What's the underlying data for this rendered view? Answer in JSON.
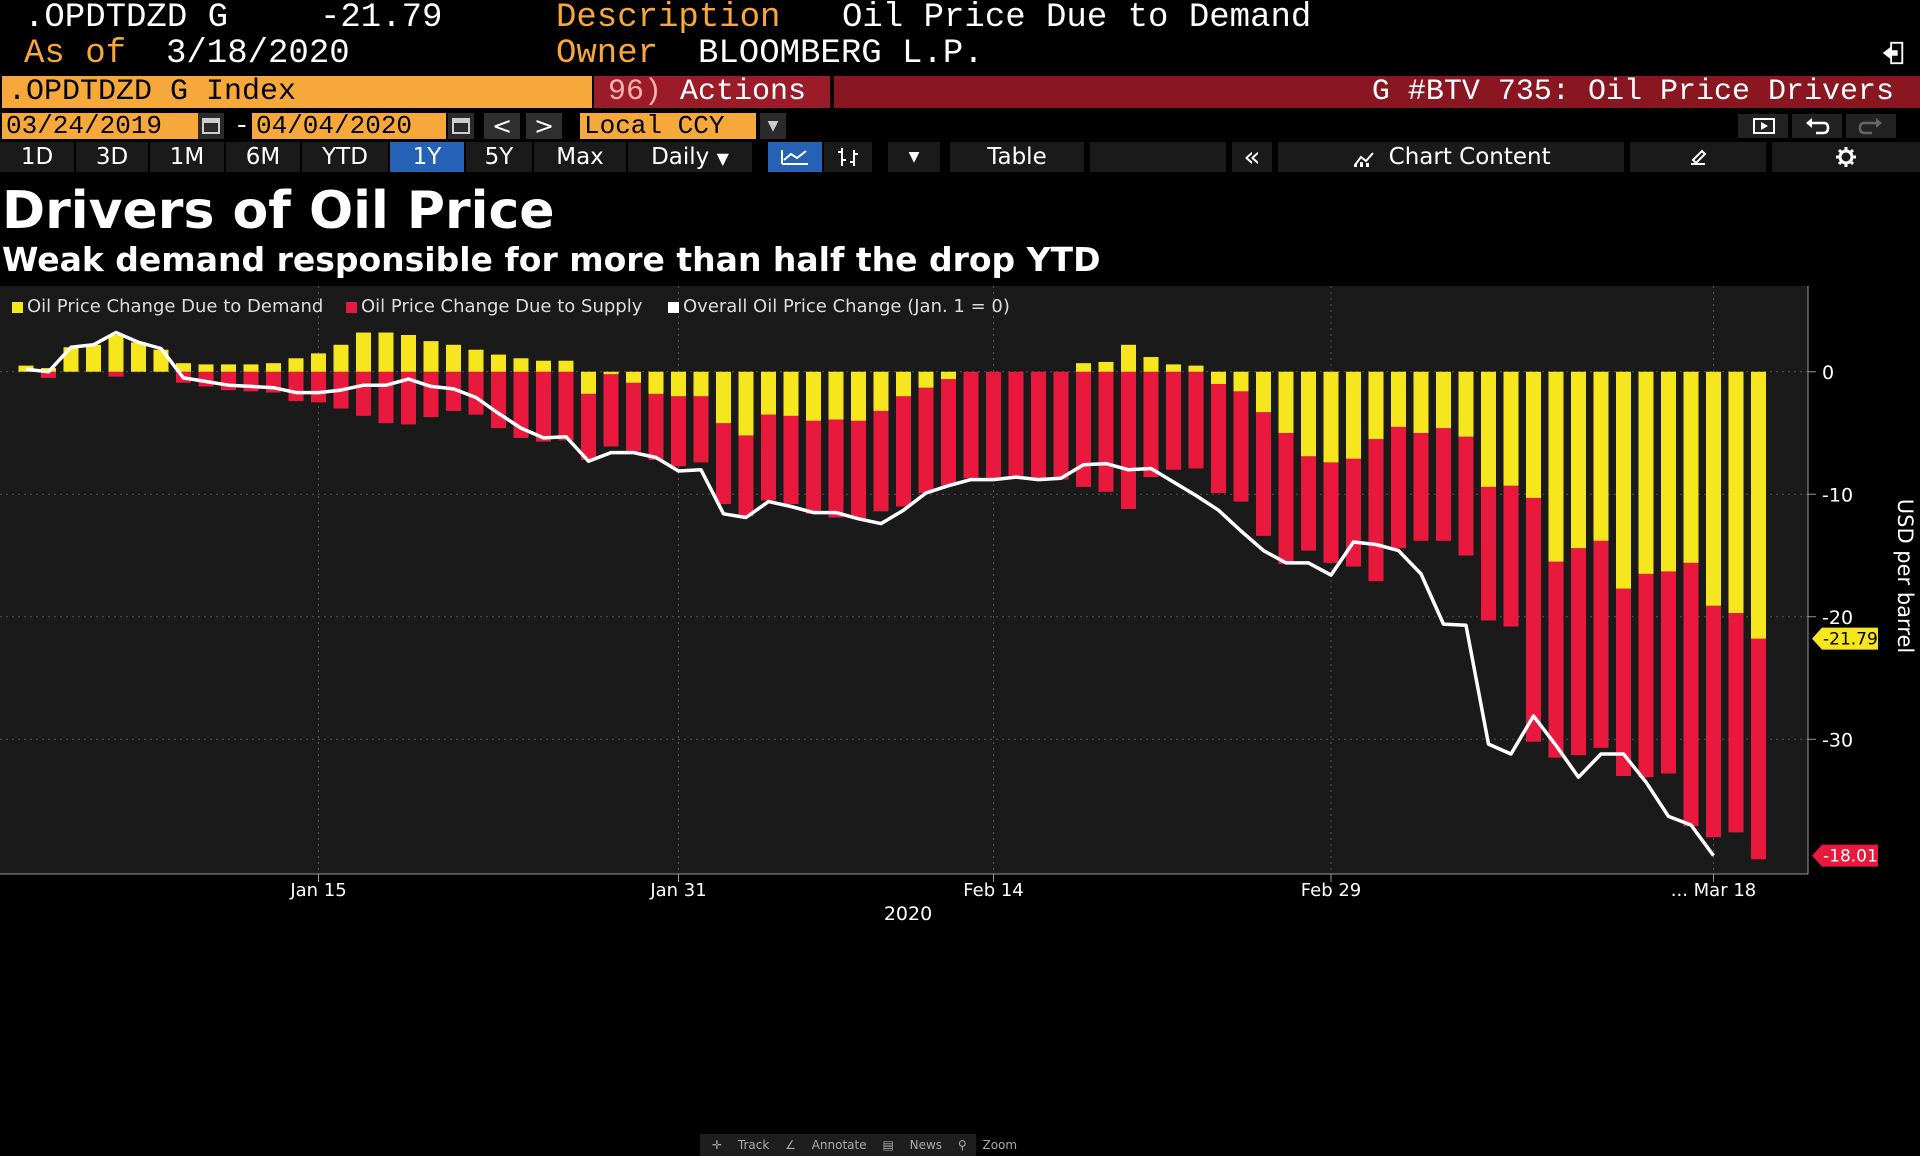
{
  "header": {
    "ticker": ".OPDTDZD G",
    "last_value": "-21.79",
    "as_of_label": "As of",
    "as_of_date": "3/18/2020",
    "description_label": "Description",
    "description": "Oil Price Due to Demand",
    "owner_label": "Owner",
    "owner": "BLOOMBERG L.P."
  },
  "security_bar": {
    "security": ".OPDTDZD G Index",
    "actions_num": "96)",
    "actions_label": "Actions",
    "chart_name": "G #BTV 735: Oil Price Drivers"
  },
  "date_row": {
    "start_date": "03/24/2019",
    "separator": "-",
    "end_date": "04/04/2020",
    "prev": "<",
    "next": ">",
    "currency": "Local CCY"
  },
  "period_row": {
    "periods": [
      "1D",
      "3D",
      "1M",
      "6M",
      "YTD",
      "1Y",
      "5Y",
      "Max"
    ],
    "active_period": "1Y",
    "frequency": "Daily",
    "table_label": "Table",
    "collapse_label": "«",
    "chart_content_label": "Chart Content"
  },
  "icons": {
    "exit": "exit-icon",
    "calendar": "calendar-icon",
    "dropdown": "chevron-down-icon",
    "line_chart": "line-chart-icon",
    "bar_chart": "ohlc-icon",
    "presentation": "presentation-icon",
    "undo": "undo-icon",
    "redo": "redo-icon",
    "edit": "edit-icon",
    "settings": "gear-icon"
  },
  "colors": {
    "demand": "#f5e61d",
    "supply": "#e8193c",
    "overall": "#ffffff",
    "orange": "#f7a83b",
    "background": "#1a1a1a"
  },
  "toolstrip": {
    "track": "Track",
    "annotate": "Annotate",
    "news": "News",
    "zoom": "Zoom"
  },
  "chart_data": {
    "type": "bar",
    "title": "Drivers of Oil Price",
    "subtitle": "Weak demand responsible for more than half the drop YTD",
    "ylabel": "USD per barrel",
    "xlabel": "2020",
    "ylim": [
      -41,
      7
    ],
    "yticks": [
      0,
      -10,
      -20,
      -30
    ],
    "xticks": [
      {
        "index": 13,
        "label": "Jan 15"
      },
      {
        "index": 29,
        "label": "Jan 31"
      },
      {
        "index": 43,
        "label": "Feb 14"
      },
      {
        "index": 58,
        "label": "Feb 29"
      },
      {
        "index": 75,
        "label": "...   Mar 18"
      }
    ],
    "legend": [
      "Oil Price Change Due to Demand",
      "Oil Price Change Due to Supply",
      "Overall Oil Price Change (Jan. 1 = 0)"
    ],
    "last_labels": {
      "demand": "-21.79",
      "supply": "-18.01"
    },
    "series": [
      {
        "name": "Oil Price Change Due to Demand",
        "values": [
          0.5,
          0.3,
          2.0,
          2.2,
          3.0,
          2.4,
          1.8,
          0.7,
          0.6,
          0.6,
          0.6,
          0.7,
          1.1,
          1.5,
          2.2,
          3.2,
          3.2,
          3.0,
          2.5,
          2.2,
          1.8,
          1.4,
          1.1,
          0.9,
          0.9,
          -1.8,
          -0.2,
          -0.9,
          -1.8,
          -2.0,
          -2.0,
          -4.2,
          -5.2,
          -3.5,
          -3.6,
          -4.0,
          -3.9,
          -4.0,
          -3.2,
          -2.0,
          -1.3,
          -0.6,
          0.0,
          0.0,
          0.0,
          0.0,
          0.0,
          0.7,
          0.8,
          2.2,
          1.2,
          0.6,
          0.5,
          -1.0,
          -1.6,
          -3.3,
          -5.0,
          -6.9,
          -7.4,
          -7.1,
          -5.5,
          -4.5,
          -5.0,
          -4.6,
          -5.3,
          -9.4,
          -9.3,
          -10.3,
          -15.5,
          -14.4,
          -13.8,
          -17.7,
          -16.5,
          -16.3,
          -15.6,
          -19.1,
          -19.7,
          -21.79
        ]
      },
      {
        "name": "Oil Price Change Due to Supply",
        "values": [
          0.0,
          -0.5,
          0.0,
          0.0,
          -0.4,
          0.0,
          0.0,
          -0.9,
          -1.2,
          -1.5,
          -1.6,
          -1.7,
          -2.4,
          -2.5,
          -3.0,
          -3.6,
          -4.2,
          -4.3,
          -3.7,
          -3.2,
          -3.5,
          -4.6,
          -5.4,
          -5.7,
          -5.6,
          -5.4,
          -5.9,
          -5.6,
          -5.4,
          -5.7,
          -5.4,
          -6.6,
          -6.6,
          -7.0,
          -7.2,
          -7.6,
          -8.0,
          -8.0,
          -8.2,
          -9.0,
          -8.6,
          -8.7,
          -8.7,
          -8.8,
          -8.5,
          -8.8,
          -8.8,
          -9.4,
          -9.8,
          -11.2,
          -8.6,
          -8.0,
          -7.9,
          -8.9,
          -9.0,
          -10.1,
          -10.7,
          -7.7,
          -8.2,
          -8.8,
          -11.6,
          -9.9,
          -8.8,
          -9.2,
          -9.7,
          -10.9,
          -11.5,
          -19.9,
          -16.0,
          -16.9,
          -16.9,
          -15.3,
          -16.6,
          -16.5,
          -21.5,
          -18.9,
          -17.9,
          -18.01
        ]
      },
      {
        "name": "Overall Oil Price Change (Jan. 1 = 0)",
        "values": [
          0.2,
          0.0,
          2.0,
          2.2,
          3.2,
          2.4,
          1.9,
          -0.5,
          -0.8,
          -1.1,
          -1.2,
          -1.3,
          -1.7,
          -1.7,
          -1.5,
          -1.1,
          -1.1,
          -0.6,
          -1.2,
          -1.4,
          -2.1,
          -3.4,
          -4.6,
          -5.4,
          -5.3,
          -7.3,
          -6.6,
          -6.6,
          -7.0,
          -8.1,
          -8.0,
          -11.6,
          -11.9,
          -10.6,
          -11.0,
          -11.5,
          -11.5,
          -12.0,
          -12.4,
          -11.3,
          -9.9,
          -9.3,
          -8.8,
          -8.8,
          -8.6,
          -8.8,
          -8.7,
          -7.6,
          -7.5,
          -8.0,
          -7.9,
          -9.0,
          -10.1,
          -11.3,
          -13.0,
          -14.6,
          -15.6,
          -15.6,
          -16.6,
          -13.9,
          -14.1,
          -14.6,
          -16.5,
          -20.6,
          -20.7,
          -30.4,
          -31.2,
          -28.1,
          -30.5,
          -33.1,
          -31.2,
          -31.2,
          -33.5,
          -36.3,
          -37.0,
          -39.5
        ]
      }
    ]
  }
}
